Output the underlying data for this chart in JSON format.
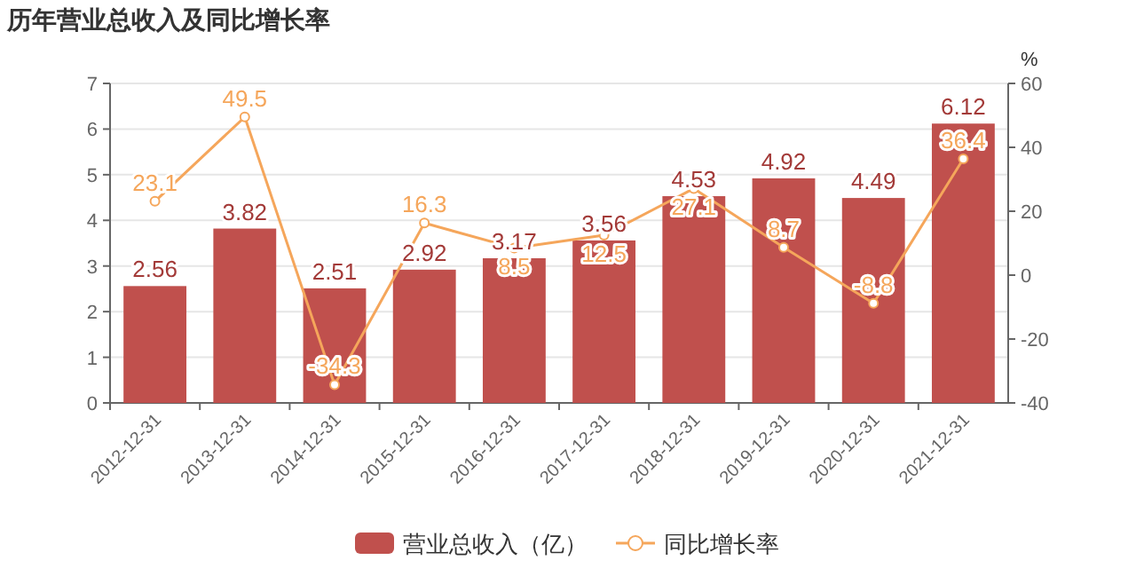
{
  "chart_data": {
    "type": "bar",
    "title": "历年营业总收入及同比增长率",
    "categories": [
      "2012-12-31",
      "2013-12-31",
      "2014-12-31",
      "2015-12-31",
      "2016-12-31",
      "2017-12-31",
      "2018-12-31",
      "2019-12-31",
      "2020-12-31",
      "2021-12-31"
    ],
    "series": [
      {
        "name": "营业总收入（亿）",
        "color": "#c0504d",
        "values": [
          2.56,
          3.82,
          2.51,
          2.92,
          3.17,
          3.56,
          4.53,
          4.92,
          4.49,
          6.12
        ]
      },
      {
        "name": "同比增长率",
        "type": "line",
        "axis": "y2",
        "color": "#f5a65b",
        "values": [
          23.1,
          49.5,
          -34.3,
          16.3,
          8.5,
          12.5,
          27.1,
          8.7,
          -8.8,
          36.4
        ]
      }
    ],
    "ylim": [
      0,
      7
    ],
    "yticks": [
      0,
      1,
      2,
      3,
      4,
      5,
      6,
      7
    ],
    "y2lim": [
      -40,
      60
    ],
    "y2ticks": [
      -40,
      -20,
      0,
      20,
      40,
      60
    ],
    "y2label": "%",
    "data_labels": true,
    "legend": "bottom",
    "grid": "y",
    "marker": "circle"
  }
}
